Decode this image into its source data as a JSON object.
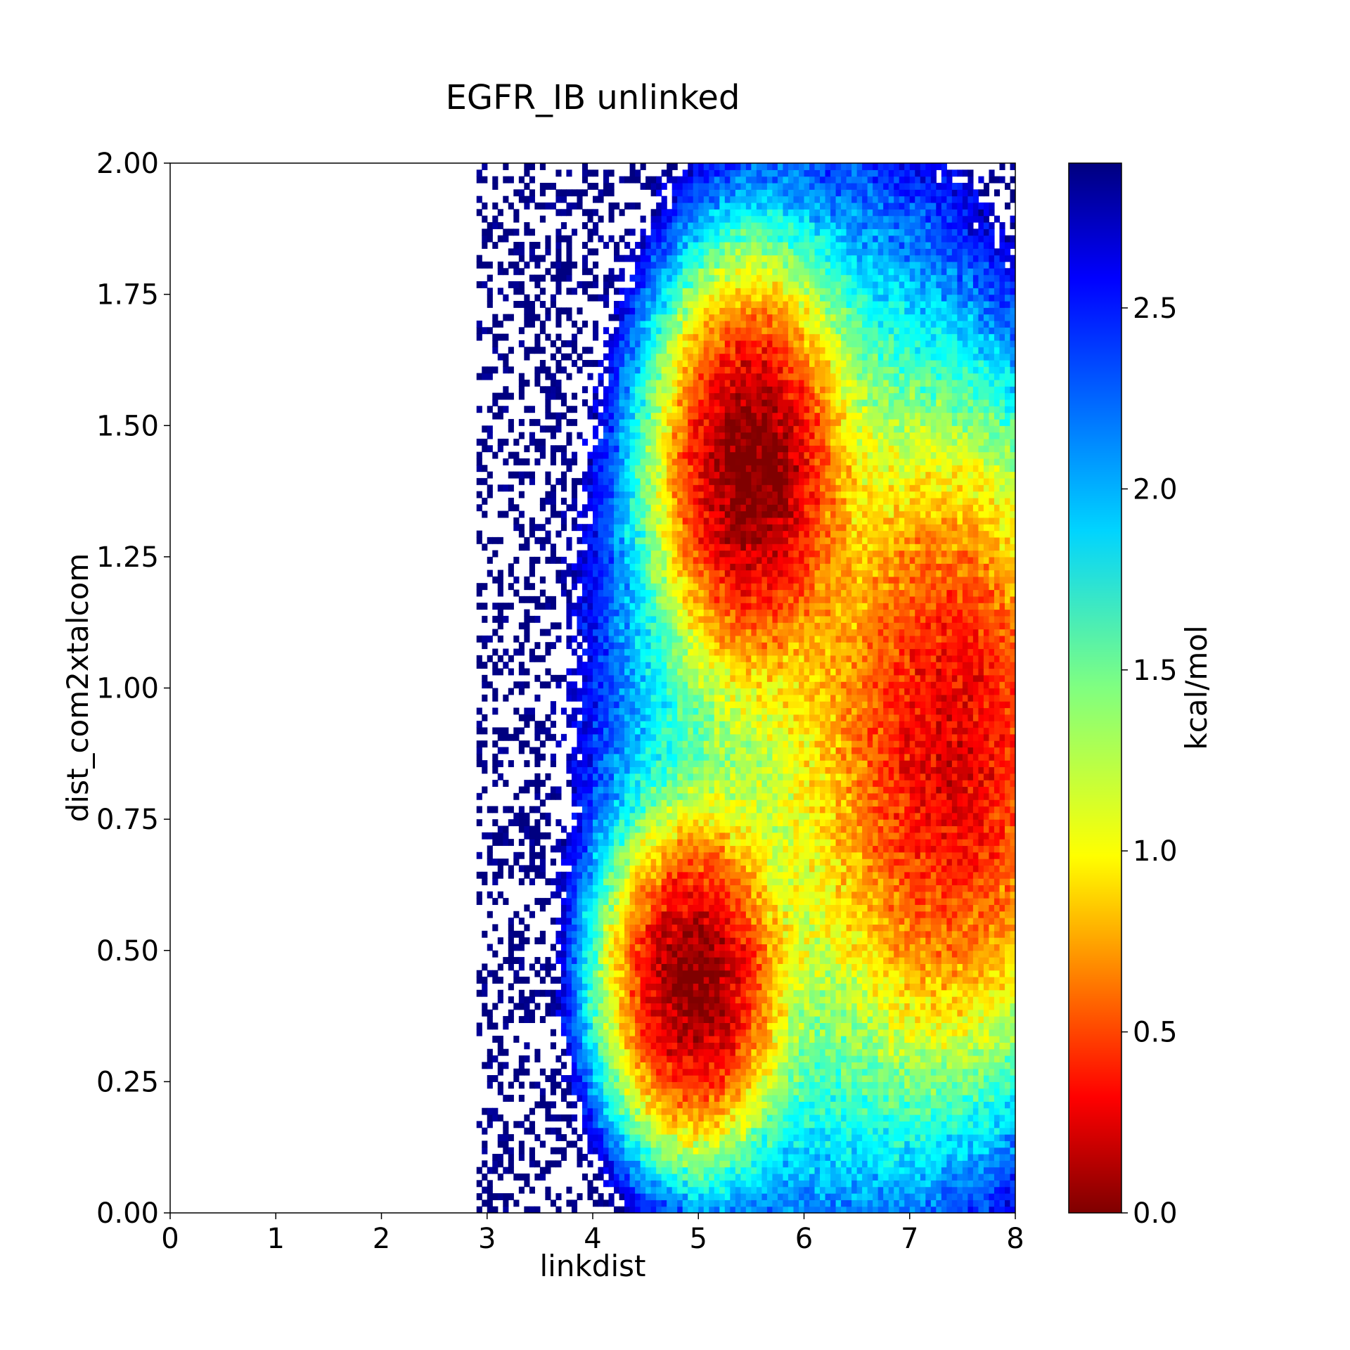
{
  "chart_data": {
    "type": "heatmap",
    "title": "EGFR_IB unlinked",
    "xlabel": "linkdist",
    "ylabel": "dist_com2xtalcom",
    "xlim": [
      0,
      8
    ],
    "ylim": [
      0,
      2
    ],
    "x_ticks": [
      "0",
      "1",
      "2",
      "3",
      "4",
      "5",
      "6",
      "7",
      "8"
    ],
    "y_ticks": [
      "0.00",
      "0.25",
      "0.50",
      "0.75",
      "1.00",
      "1.25",
      "1.50",
      "1.75",
      "2.00"
    ],
    "colorbar": {
      "label": "kcal/mol",
      "range": [
        0,
        2.9
      ],
      "ticks": [
        "0.0",
        "0.5",
        "1.0",
        "1.5",
        "2.0",
        "2.5"
      ],
      "colormap": "jet_r"
    },
    "grid": false,
    "bins": {
      "nx": 160,
      "ny": 160
    },
    "minima": [
      {
        "x": 5.5,
        "y": 1.42,
        "value": 0.0
      },
      {
        "x": 4.95,
        "y": 0.44,
        "value": 0.05
      },
      {
        "x": 7.45,
        "y": 0.88,
        "value": 0.7
      }
    ]
  }
}
